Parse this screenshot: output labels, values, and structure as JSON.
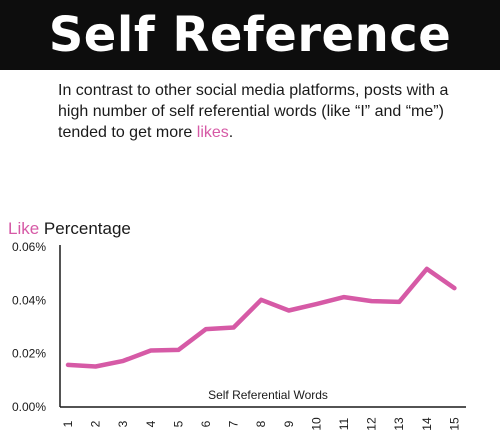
{
  "header": {
    "title": "Self Reference"
  },
  "intro": {
    "text_before": "In contrast to other social media platforms, posts with a high number of self referential words (like “I” and “me”) tended to get more ",
    "highlight": "likes",
    "text_after": "."
  },
  "colors": {
    "accent": "#d65aa6",
    "banner": "#0d0d0d",
    "text": "#1a1a1a"
  },
  "chart_data": {
    "type": "line",
    "title": "",
    "ylabel_highlight": "Like",
    "ylabel_rest": " Percentage",
    "xlabel": "Self Referential Words",
    "x": [
      1,
      2,
      3,
      4,
      5,
      6,
      7,
      8,
      9,
      10,
      11,
      12,
      13,
      14,
      15
    ],
    "x_tick_labels": [
      "1",
      "2",
      "3",
      "4",
      "5",
      "6",
      "7",
      "8",
      "9",
      "10",
      "11",
      "12",
      "13",
      "14",
      "15"
    ],
    "y_ticks": [
      0,
      0.02,
      0.04,
      0.06
    ],
    "y_tick_labels": [
      "0.00%",
      "0.02%",
      "0.04%",
      "0.06%"
    ],
    "ylim": [
      0,
      0.06
    ],
    "grid": false,
    "series": [
      {
        "values": [
          0.0158,
          0.0152,
          0.0173,
          0.0212,
          0.0214,
          0.0292,
          0.0298,
          0.0402,
          0.0362,
          0.0386,
          0.0412,
          0.0397,
          0.0394,
          0.0518,
          0.0446
        ],
        "color": "#d65aa6"
      }
    ]
  }
}
